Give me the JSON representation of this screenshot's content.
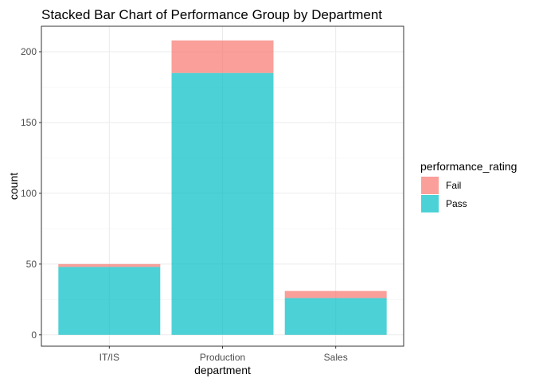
{
  "chart_data": {
    "type": "bar",
    "stacked": true,
    "title": "Stacked Bar Chart of Performance Group by Department",
    "xlabel": "department",
    "ylabel": "count",
    "categories": [
      "IT/IS",
      "Production",
      "Sales"
    ],
    "series": [
      {
        "name": "Fail",
        "values": [
          2,
          23,
          5
        ],
        "color": "#F8766D"
      },
      {
        "name": "Pass",
        "values": [
          48,
          185,
          26
        ],
        "color": "#00BFC4"
      }
    ],
    "ylim": [
      -8,
      218
    ],
    "yticks": [
      0,
      50,
      100,
      150,
      200
    ],
    "grid": true,
    "legend": {
      "title": "performance_rating",
      "position": "right"
    }
  }
}
